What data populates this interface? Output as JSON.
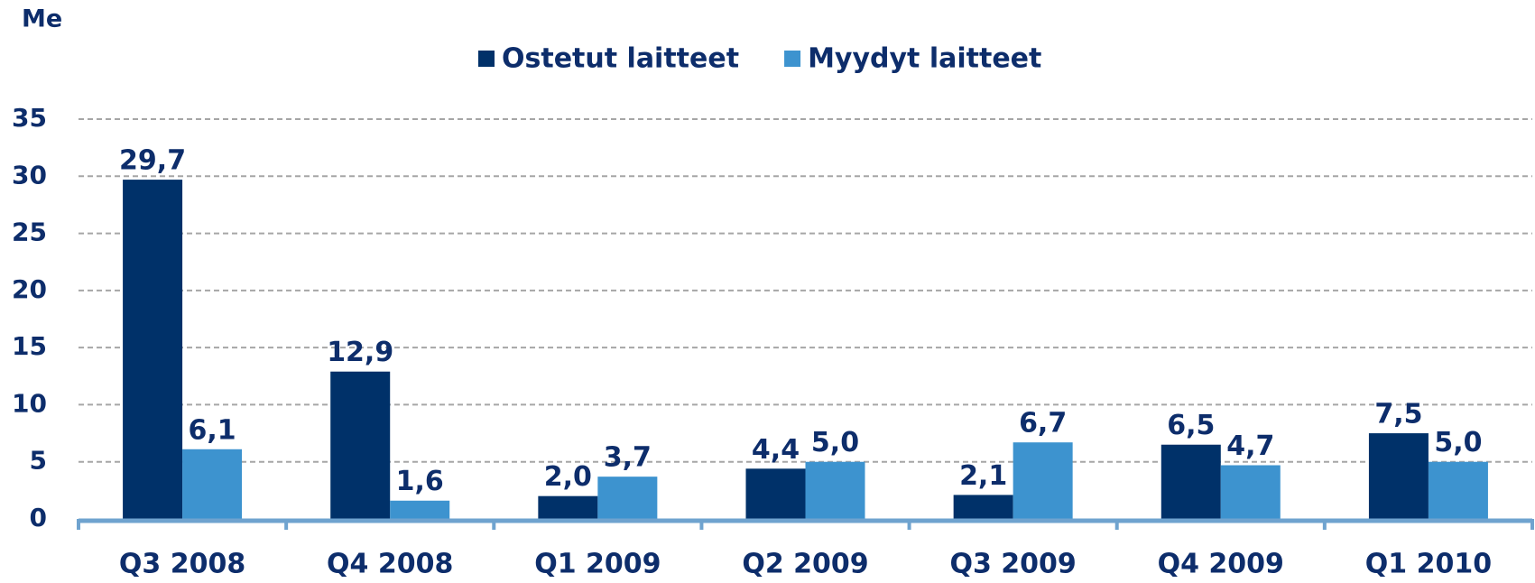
{
  "chart_data": {
    "type": "bar",
    "y_label": "Me",
    "categories": [
      "Q3 2008",
      "Q4 2008",
      "Q1 2009",
      "Q2 2009",
      "Q3 2009",
      "Q4 2009",
      "Q1 2010"
    ],
    "series": [
      {
        "name": "Ostetut laitteet",
        "color": "#003169",
        "values": [
          29.7,
          12.9,
          2.0,
          4.4,
          2.1,
          6.5,
          7.5
        ],
        "value_labels": [
          "29,7",
          "12,9",
          "2,0",
          "4,4",
          "2,1",
          "6,5",
          "7,5"
        ]
      },
      {
        "name": "Myydyt laitteet",
        "color": "#3d93cf",
        "values": [
          6.1,
          1.6,
          3.7,
          5.0,
          6.7,
          4.7,
          5.0
        ],
        "value_labels": [
          "6,1",
          "1,6",
          "3,7",
          "5,0",
          "6,7",
          "4,7",
          "5,0"
        ]
      }
    ],
    "ylim": [
      0,
      35
    ],
    "yticks": [
      0,
      5,
      10,
      15,
      20,
      25,
      30,
      35
    ],
    "grid": true,
    "legend": "top"
  }
}
